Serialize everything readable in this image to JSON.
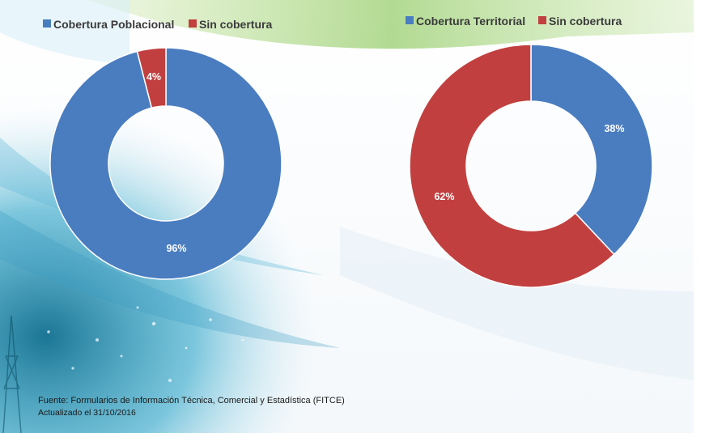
{
  "chart_data": [
    {
      "type": "pie",
      "style": "donut",
      "legend_position": "top",
      "labels": [
        "Cobertura Poblacional",
        "Sin cobertura"
      ],
      "values": [
        96,
        4
      ],
      "value_labels": [
        "96%",
        "4%"
      ],
      "colors": [
        "#4a7dc0",
        "#c1403f"
      ]
    },
    {
      "type": "pie",
      "style": "donut",
      "legend_position": "top",
      "labels": [
        "Cobertura Territorial",
        "Sin cobertura"
      ],
      "values": [
        38,
        62
      ],
      "value_labels": [
        "38%",
        "62%"
      ],
      "colors": [
        "#4a7dc0",
        "#c1403f"
      ]
    }
  ],
  "footer": {
    "source": "Fuente: Formularios de Información Técnica, Comercial y Estadística (FITCE)",
    "updated": "Actualizado el 31/10/2016"
  },
  "background": {
    "accent_green": "#8cc63f",
    "accent_blue": "#1e88c8"
  }
}
